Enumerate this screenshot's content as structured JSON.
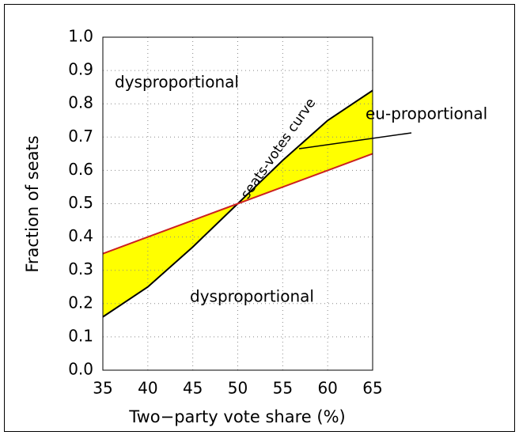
{
  "chart_data": {
    "type": "line",
    "x_label": "Two−party vote share (%)",
    "y_label": "Fraction of seats",
    "x": [
      35,
      40,
      45,
      50,
      55,
      60,
      65
    ],
    "series": [
      {
        "color": "#000000",
        "values": [
          0.16,
          0.25,
          0.37,
          0.5,
          0.63,
          0.75,
          0.84
        ]
      },
      {
        "color": "#cc2020",
        "values": [
          0.35,
          0.4,
          0.45,
          0.5,
          0.55,
          0.6,
          0.65
        ]
      }
    ],
    "fill_between_color": "#ffff00",
    "xlim": [
      35,
      65
    ],
    "ylim": [
      0,
      1
    ],
    "xticks": [
      35,
      40,
      45,
      50,
      55,
      60,
      65
    ],
    "yticks": [
      {
        "value": 0,
        "label": "0.0"
      },
      0.1,
      0.2,
      0.3,
      0.4,
      0.5,
      0.6,
      0.7,
      0.8,
      0.9,
      {
        "value": 1,
        "label": "1.0"
      }
    ],
    "grid": true,
    "annotations": [
      "dysproportional",
      "dysproportional",
      "eu-proportional",
      "seats-votes curve"
    ]
  }
}
